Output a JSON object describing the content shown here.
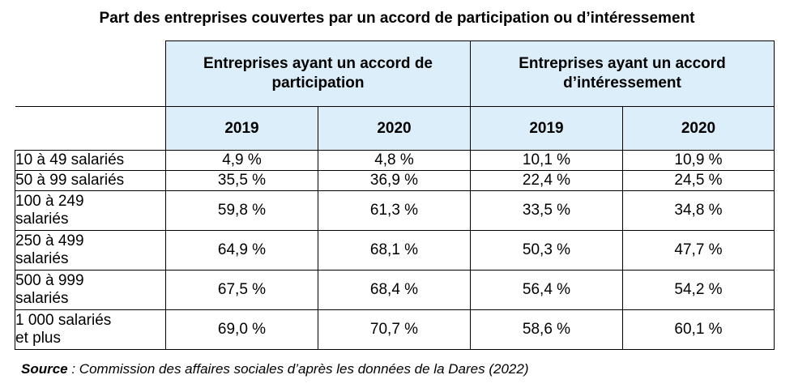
{
  "title": "Part des entreprises couvertes par un accord de participation ou d’intéressement",
  "chart_data": {
    "type": "table",
    "title": "Part des entreprises couvertes par un accord de participation ou d’intéressement",
    "groups": [
      {
        "label": "Entreprises ayant un accord de participation",
        "line1": "Entreprises ayant un accord de",
        "line2": "participation",
        "years": [
          "2019",
          "2020"
        ]
      },
      {
        "label": "Entreprises ayant un accord d’intéressement",
        "line1": "Entreprises ayant un accord",
        "line2": "d’intéressement",
        "years": [
          "2019",
          "2020"
        ]
      }
    ],
    "rows": [
      {
        "label_line1": "10 à 49 salariés",
        "label_line2": "",
        "values": [
          "4,9 %",
          "4,8 %",
          "10,1 %",
          "10,9 %"
        ]
      },
      {
        "label_line1": "50 à 99 salariés",
        "label_line2": "",
        "values": [
          "35,5 %",
          "36,9 %",
          "22,4 %",
          "24,5 %"
        ]
      },
      {
        "label_line1": "100 à 249",
        "label_line2": "salariés",
        "values": [
          "59,8 %",
          "61,3 %",
          "33,5 %",
          "34,8 %"
        ]
      },
      {
        "label_line1": "250 à 499",
        "label_line2": "salariés",
        "values": [
          "64,9 %",
          "68,1 %",
          "50,3 %",
          "47,7 %"
        ]
      },
      {
        "label_line1": "500 à 999",
        "label_line2": "salariés",
        "values": [
          "67,5 %",
          "68,4 %",
          "56,4 %",
          "54,2 %"
        ]
      },
      {
        "label_line1": "1 000 salariés",
        "label_line2": "et plus",
        "values": [
          "69,0 %",
          "70,7 %",
          "58,6 %",
          "60,1 %"
        ]
      }
    ]
  },
  "source": {
    "label": "Source",
    "text": " : Commission des affaires sociales d’après les données de la Dares (2022)"
  },
  "colors": {
    "header_background": "#dbeef9",
    "border": "#000000"
  }
}
